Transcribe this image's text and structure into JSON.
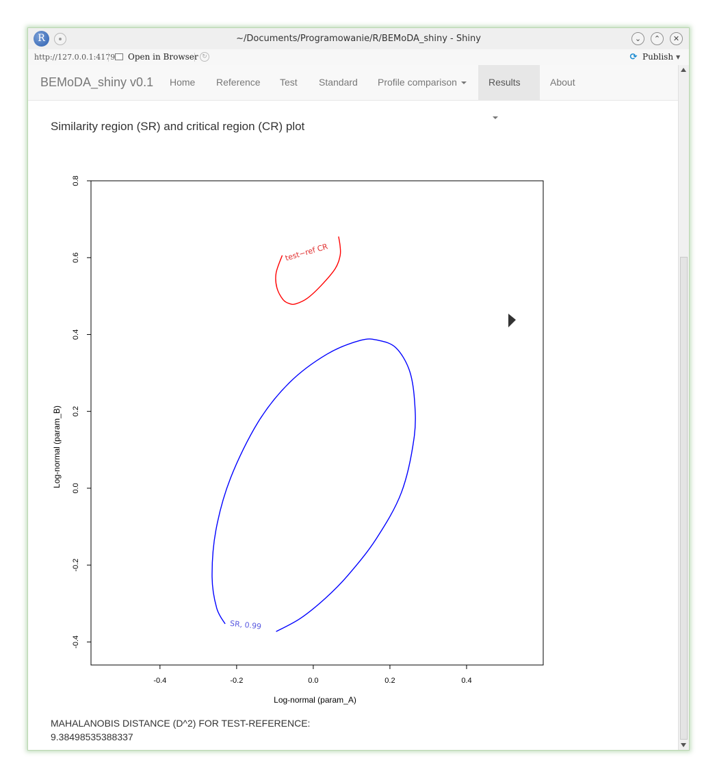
{
  "window": {
    "title": "~/Documents/Programowanie/R/BEMoDA_shiny - Shiny",
    "logo_letter": "R"
  },
  "toolbar": {
    "url": "http://127.0.0.1:4179",
    "open_in_browser": "Open in Browser",
    "publish": "Publish"
  },
  "navbar": {
    "brand": "BEMoDA_shiny v0.1",
    "items": [
      {
        "label": "Home",
        "dropdown": false,
        "active": false
      },
      {
        "label": "Reference",
        "dropdown": false,
        "active": false
      },
      {
        "label": "Test",
        "dropdown": false,
        "active": false
      },
      {
        "label": "Standard",
        "dropdown": false,
        "active": false
      },
      {
        "label": "Profile comparison",
        "dropdown": true,
        "active": false
      },
      {
        "label": "Results",
        "dropdown": true,
        "active": true
      },
      {
        "label": "About",
        "dropdown": false,
        "active": false
      }
    ]
  },
  "page": {
    "plot_title": "Similarity region (SR) and critical region (CR) plot",
    "maha_label": "MAHALANOBIS DISTANCE (D^2) FOR TEST-REFERENCE:",
    "maha_value": "9.38498535388337"
  },
  "chart_data": {
    "type": "scatter",
    "title": "",
    "xlabel": "Log-normal (param_A)",
    "ylabel": "Log-normal (param_B)",
    "xlim": [
      -0.58,
      0.6
    ],
    "ylim": [
      -0.46,
      0.8
    ],
    "xticks": [
      -0.4,
      -0.2,
      0.0,
      0.2,
      0.4
    ],
    "xtick_labels": [
      "-0.4",
      "-0.2",
      "0.0",
      "0.2",
      "0.4"
    ],
    "yticks": [
      -0.4,
      -0.2,
      0.0,
      0.2,
      0.4,
      0.6,
      0.8
    ],
    "ytick_labels": [
      "-0.4",
      "-0.2",
      "0.0",
      "0.2",
      "0.4",
      "0.6",
      "0.8"
    ],
    "grid": false,
    "series": [
      {
        "name": "SR, 0.99",
        "color": "#0000ff",
        "kind": "contour",
        "points": [
          [
            -0.23,
            -0.353
          ],
          [
            -0.252,
            -0.312
          ],
          [
            -0.264,
            -0.231
          ],
          [
            -0.254,
            -0.109
          ],
          [
            -0.216,
            0.026
          ],
          [
            -0.144,
            0.172
          ],
          [
            -0.062,
            0.275
          ],
          [
            0.036,
            0.349
          ],
          [
            0.124,
            0.385
          ],
          [
            0.169,
            0.385
          ],
          [
            0.215,
            0.366
          ],
          [
            0.25,
            0.309
          ],
          [
            0.264,
            0.231
          ],
          [
            0.263,
            0.131
          ],
          [
            0.23,
            -0.011
          ],
          [
            0.164,
            -0.132
          ],
          [
            0.091,
            -0.226
          ],
          [
            0.032,
            -0.286
          ],
          [
            -0.034,
            -0.339
          ],
          [
            -0.097,
            -0.373
          ]
        ],
        "label": "SR,   0.99"
      },
      {
        "name": "test-ref CR",
        "color": "#ff0000",
        "kind": "contour",
        "points": [
          [
            -0.081,
            0.606
          ],
          [
            -0.097,
            0.56
          ],
          [
            -0.095,
            0.522
          ],
          [
            -0.079,
            0.491
          ],
          [
            -0.061,
            0.48
          ],
          [
            -0.045,
            0.48
          ],
          [
            -0.016,
            0.494
          ],
          [
            0.02,
            0.527
          ],
          [
            0.057,
            0.571
          ],
          [
            0.07,
            0.605
          ],
          [
            0.07,
            0.63
          ],
          [
            0.066,
            0.655
          ]
        ],
        "label": "test−ref  CR"
      }
    ]
  }
}
